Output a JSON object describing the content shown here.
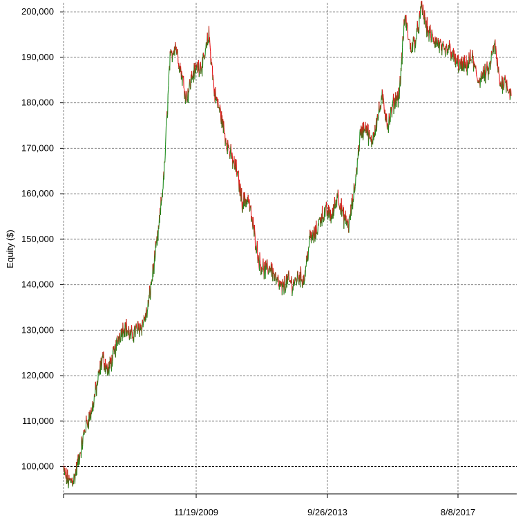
{
  "chart_data": {
    "type": "line",
    "title": "",
    "xlabel": "",
    "ylabel": "Equity ($)",
    "ylim": [
      94000,
      202000
    ],
    "grid": true,
    "legend": "none",
    "x_ticks": [
      "11/19/2009",
      "9/26/2013",
      "8/8/2017"
    ],
    "y_ticks": [
      100000,
      110000,
      120000,
      130000,
      140000,
      150000,
      160000,
      170000,
      180000,
      190000,
      200000
    ],
    "y_tick_labels": [
      "100,000",
      "110,000",
      "120,000",
      "130,000",
      "140,000",
      "150,000",
      "160,000",
      "170,000",
      "180,000",
      "190,000",
      "200,000"
    ],
    "x_range": [
      "2006-01-01",
      "2019-06-30"
    ],
    "baseline": 100000,
    "colors": {
      "up": "#1a8a1a",
      "down": "#e8141a",
      "grid": "#808080",
      "axis": "#000000"
    },
    "series": [
      {
        "x": [
          "2006-01-01",
          "2006-03-01",
          "2006-05-01",
          "2006-07-01",
          "2006-09-01",
          "2006-11-01",
          "2007-01-01",
          "2007-03-01",
          "2007-05-01",
          "2007-07-01",
          "2007-09-01",
          "2007-11-01",
          "2008-01-01",
          "2008-03-01",
          "2008-05-01",
          "2008-07-01",
          "2008-09-01",
          "2008-11-01",
          "2009-01-01",
          "2009-03-01",
          "2009-05-01",
          "2009-07-01",
          "2009-09-01",
          "2009-11-01",
          "2010-01-01",
          "2010-03-01",
          "2010-05-01",
          "2010-07-01",
          "2010-09-01",
          "2010-11-01",
          "2011-01-01",
          "2011-03-01",
          "2011-05-01",
          "2011-07-01",
          "2011-09-01",
          "2011-11-01",
          "2012-01-01",
          "2012-03-01",
          "2012-05-01",
          "2012-07-01",
          "2012-09-01",
          "2012-11-01",
          "2013-01-01",
          "2013-03-01",
          "2013-05-01",
          "2013-07-01",
          "2013-09-01",
          "2013-11-01",
          "2014-01-01",
          "2014-03-01",
          "2014-05-01",
          "2014-07-01",
          "2014-09-01",
          "2014-11-01",
          "2015-01-01",
          "2015-03-01",
          "2015-05-01",
          "2015-07-01",
          "2015-09-01",
          "2015-11-01",
          "2016-01-01",
          "2016-03-01",
          "2016-05-01",
          "2016-07-01",
          "2016-09-01",
          "2016-11-01",
          "2017-01-01",
          "2017-03-01",
          "2017-05-01",
          "2017-07-01",
          "2017-09-01",
          "2017-11-01",
          "2018-01-01",
          "2018-03-01",
          "2018-05-01",
          "2018-07-01",
          "2018-09-01",
          "2018-11-01",
          "2019-01-01",
          "2019-03-01",
          "2019-05-01"
        ],
        "values": [
          99000,
          96500,
          97500,
          103000,
          109000,
          112000,
          118000,
          124000,
          121000,
          124500,
          129000,
          131000,
          128500,
          130000,
          131000,
          134000,
          143000,
          152000,
          165000,
          189000,
          193000,
          187000,
          181000,
          186000,
          188000,
          188500,
          195000,
          182000,
          178000,
          172000,
          168000,
          165000,
          158000,
          159000,
          152000,
          145000,
          143000,
          144000,
          141000,
          139000,
          141000,
          140000,
          142000,
          141000,
          150000,
          151000,
          155000,
          156000,
          155000,
          160000,
          155000,
          153000,
          161000,
          173000,
          175000,
          171000,
          176000,
          181000,
          175000,
          180000,
          182000,
          199000,
          192000,
          194000,
          201000,
          196000,
          194000,
          193000,
          191000,
          192000,
          189000,
          188000,
          188000,
          190000,
          185000,
          186000,
          187000,
          193000,
          184000,
          185000,
          181500
        ]
      }
    ]
  }
}
